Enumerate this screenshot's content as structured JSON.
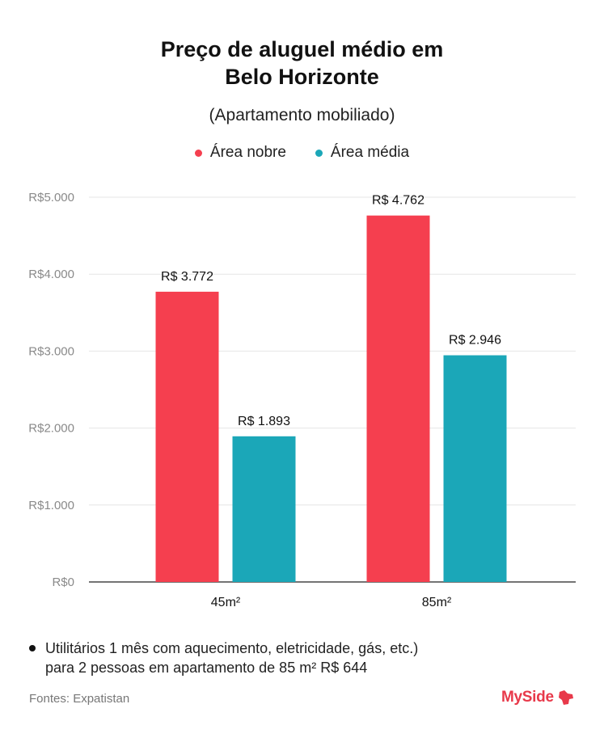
{
  "title_line1": "Preço de aluguel médio em",
  "title_line2": "Belo Horizonte",
  "subtitle": "(Apartamento mobiliado)",
  "legend": [
    {
      "label": "Área nobre",
      "color": "#f53f4f"
    },
    {
      "label": "Área média",
      "color": "#1ba7b8"
    }
  ],
  "footnote_line1": "Utilitários 1 mês com aquecimento, eletricidade, gás, etc.)",
  "footnote_line2": "para 2 pessoas em apartamento de 85 m² R$ 644",
  "source": "Fontes: Expatistan",
  "brand": "MySide",
  "chart_data": {
    "type": "bar",
    "categories": [
      "45m²",
      "85m²"
    ],
    "series": [
      {
        "name": "Área nobre",
        "values": [
          3772,
          4762
        ],
        "labels": [
          "R$ 3.772",
          "R$ 4.762"
        ],
        "color": "#f53f4f"
      },
      {
        "name": "Área média",
        "values": [
          1893,
          2946
        ],
        "labels": [
          "R$ 1.893",
          "R$ 2.946"
        ],
        "color": "#1ba7b8"
      }
    ],
    "ylim": [
      0,
      5000
    ],
    "yticks": [
      0,
      1000,
      2000,
      3000,
      4000,
      5000
    ],
    "ytick_labels": [
      "R$0",
      "R$1.000",
      "R$2.000",
      "R$3.000",
      "R$4.000",
      "R$5.000"
    ],
    "grid": true,
    "legend_position": "top-center"
  }
}
